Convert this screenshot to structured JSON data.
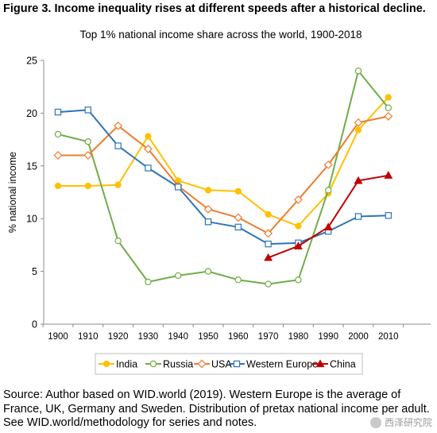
{
  "figure_title": "Figure 3. Income inequality rises at different speeds after a historical decline.",
  "source_note": "Source: Author based on WID.world (2019). Western Europe is the average of France, UK, Germany and Sweden. Distribution of pretax national income per adult. See WID.world/methodology for series and notes.",
  "watermark": "西泽研究院",
  "chart_data": {
    "type": "line",
    "title": "Top 1% national income share across the world, 1900-2018",
    "xlabel": "",
    "ylabel": "% national income",
    "xlim": [
      1900,
      2010
    ],
    "ylim": [
      0,
      25
    ],
    "x_ticks": [
      1900,
      1910,
      1920,
      1930,
      1940,
      1950,
      1960,
      1970,
      1980,
      1990,
      2000,
      2010
    ],
    "y_ticks": [
      0,
      5,
      10,
      15,
      20,
      25
    ],
    "grid": false,
    "legend_position": "bottom",
    "series": [
      {
        "name": "India",
        "color": "#ffc000",
        "marker": "circle-filled",
        "points": [
          [
            1900,
            13.1
          ],
          [
            1910,
            13.1
          ],
          [
            1920,
            13.2
          ],
          [
            1930,
            17.8
          ],
          [
            1940,
            13.6
          ],
          [
            1950,
            12.7
          ],
          [
            1960,
            12.6
          ],
          [
            1970,
            10.4
          ],
          [
            1980,
            9.3
          ],
          [
            1990,
            12.4
          ],
          [
            2000,
            18.4
          ],
          [
            2010,
            21.5
          ]
        ]
      },
      {
        "name": "Russia",
        "color": "#70ad47",
        "marker": "circle-open",
        "points": [
          [
            1900,
            18.0
          ],
          [
            1910,
            17.3
          ],
          [
            1920,
            7.9
          ],
          [
            1930,
            4.0
          ],
          [
            1940,
            4.6
          ],
          [
            1950,
            5.0
          ],
          [
            1960,
            4.2
          ],
          [
            1970,
            3.8
          ],
          [
            1980,
            4.2
          ],
          [
            1990,
            12.7
          ],
          [
            2000,
            24.0
          ],
          [
            2010,
            20.5
          ]
        ]
      },
      {
        "name": "USA",
        "color": "#ed7d31",
        "marker": "diamond-open",
        "points": [
          [
            1900,
            16.0
          ],
          [
            1910,
            16.0
          ],
          [
            1920,
            18.8
          ],
          [
            1930,
            16.6
          ],
          [
            1940,
            13.1
          ],
          [
            1950,
            10.9
          ],
          [
            1960,
            10.1
          ],
          [
            1970,
            8.6
          ],
          [
            1980,
            11.8
          ],
          [
            1990,
            15.1
          ],
          [
            2000,
            19.1
          ],
          [
            2010,
            19.7
          ]
        ]
      },
      {
        "name": "Western Europe",
        "color": "#2e75b6",
        "marker": "square-open",
        "points": [
          [
            1900,
            20.1
          ],
          [
            1910,
            20.3
          ],
          [
            1920,
            16.9
          ],
          [
            1930,
            14.8
          ],
          [
            1940,
            13.0
          ],
          [
            1950,
            9.7
          ],
          [
            1960,
            9.2
          ],
          [
            1970,
            7.6
          ],
          [
            1980,
            7.7
          ],
          [
            1990,
            8.8
          ],
          [
            2000,
            10.2
          ],
          [
            2010,
            10.3
          ]
        ]
      },
      {
        "name": "China",
        "color": "#c00000",
        "marker": "triangle-filled",
        "points": [
          [
            1970,
            6.3
          ],
          [
            1980,
            7.4
          ],
          [
            1990,
            9.2
          ],
          [
            2000,
            13.6
          ],
          [
            2010,
            14.1
          ]
        ]
      }
    ]
  }
}
